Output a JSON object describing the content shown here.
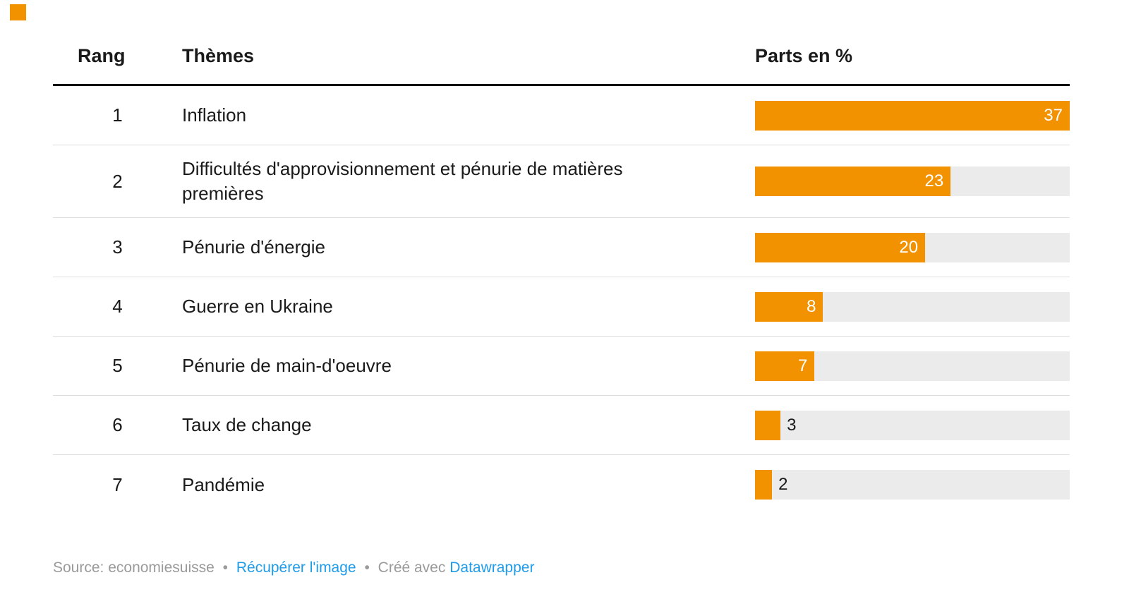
{
  "brand_mark": {
    "color": "#F39200"
  },
  "table": {
    "headers": {
      "rank": "Rang",
      "theme": "Thèmes",
      "share": "Parts en %"
    },
    "rows": [
      {
        "rank": "1",
        "theme": "Inflation",
        "value_label": "37"
      },
      {
        "rank": "2",
        "theme": "Difficultés d'approvisionnement et pénurie de matières premières",
        "value_label": "23"
      },
      {
        "rank": "3",
        "theme": "Pénurie d'énergie",
        "value_label": "20"
      },
      {
        "rank": "4",
        "theme": "Guerre en Ukraine",
        "value_label": "8"
      },
      {
        "rank": "5",
        "theme": "Pénurie de main-d'oeuvre",
        "value_label": "7"
      },
      {
        "rank": "6",
        "theme": "Taux de change",
        "value_label": "3"
      },
      {
        "rank": "7",
        "theme": "Pandémie",
        "value_label": "2"
      }
    ]
  },
  "footer": {
    "source_text": "Source: economiesuisse",
    "bullet1": "•",
    "get_image_link": "Récupérer l'image",
    "bullet2": "•",
    "created_with": "Créé avec",
    "datawrapper_link": "Datawrapper"
  },
  "colors": {
    "bar": "#F39200",
    "track": "#EBEBEB",
    "link": "#1E9BE9",
    "text": "#1A1A1A",
    "muted": "#9A9A9A",
    "divider": "#DDDDDD",
    "header_rule": "#000000"
  },
  "chart_data": {
    "type": "bar",
    "orientation": "horizontal",
    "title": "",
    "xlabel": "Parts en %",
    "ylabel": "Thèmes",
    "categories": [
      "Inflation",
      "Difficultés d'approvisionnement et pénurie de matières premières",
      "Pénurie d'énergie",
      "Guerre en Ukraine",
      "Pénurie de main-d'oeuvre",
      "Taux de change",
      "Pandémie"
    ],
    "ranks": [
      1,
      2,
      3,
      4,
      5,
      6,
      7
    ],
    "values": [
      37,
      23,
      20,
      8,
      7,
      3,
      2
    ],
    "xlim": [
      0,
      37
    ],
    "bar_color": "#F39200",
    "track_color": "#EBEBEB",
    "value_labels_shown": true,
    "grid": false,
    "legend": "none",
    "source": "economiesuisse",
    "tool": "Datawrapper"
  }
}
